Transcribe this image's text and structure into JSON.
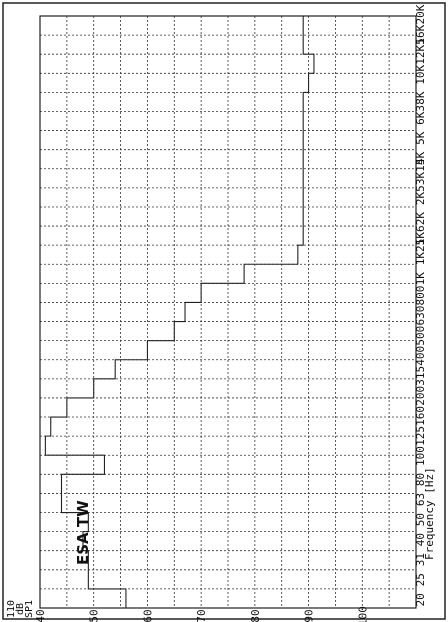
{
  "chart_data": {
    "type": "line",
    "series_title": "ESA TW",
    "xlabel": "Frequency [Hz]",
    "ylabel_lines": [
      "110",
      "dB",
      "SP1"
    ],
    "ylim": [
      40,
      110
    ],
    "y_ticks": [
      "40",
      "50",
      "60",
      "70",
      "80",
      "90",
      "100"
    ],
    "categories": [
      "20",
      "25",
      "31.5",
      "40",
      "50",
      "63",
      "80",
      "100",
      "125",
      "160",
      "200",
      "250",
      "315",
      "400",
      "500",
      "630",
      "800",
      "1K",
      "1.25K",
      "1.6K",
      "2K",
      "2.5K",
      "3.15K",
      "4K",
      "5K",
      "6.3K",
      "8K",
      "10K",
      "12.5K",
      "16K",
      "20K"
    ],
    "x_tick_labels": [
      "20",
      "",
      "25",
      "",
      "31",
      "",
      "40",
      "",
      "50",
      "",
      "63",
      "",
      "80",
      "",
      "100",
      "",
      "125",
      "",
      "160",
      "",
      "200",
      "",
      "315",
      "",
      "400",
      "",
      "500",
      "",
      "630",
      "",
      "800",
      "",
      "1K",
      "",
      "1K25",
      "",
      "1K6",
      "",
      "2K",
      "",
      "2K5",
      "",
      "3K15",
      "",
      "4K",
      "",
      "5K",
      "",
      "6K3",
      "",
      "8K",
      "",
      "10K",
      "",
      "12K5",
      "",
      "16K",
      "",
      "20K"
    ],
    "grid": true,
    "series": [
      {
        "values": [
          56,
          49,
          49,
          48,
          49,
          44,
          44,
          52,
          41,
          42,
          45,
          50,
          54,
          60,
          65,
          67,
          70,
          78,
          88,
          89,
          89,
          89,
          89,
          89,
          89,
          89,
          89,
          90,
          91,
          89,
          89
        ]
      }
    ]
  }
}
